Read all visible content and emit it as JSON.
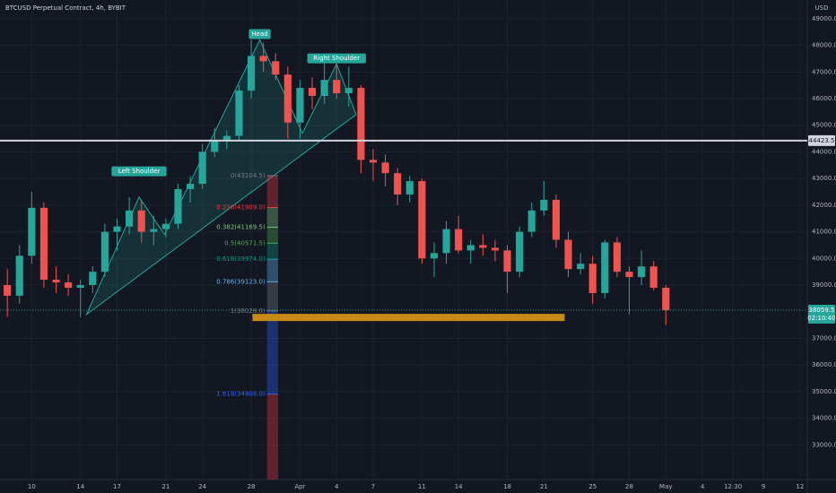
{
  "chart_data": {
    "type": "candlestick",
    "title": "BTCUSD Perpetual Contract, 4h, BYBIT",
    "currency": "USD",
    "up_color": "#26a69a",
    "down_color": "#ef5350",
    "background": "#131722",
    "grid": true,
    "xlim": [
      -2.6,
      63.6
    ],
    "xticks": [
      {
        "value": 0,
        "label": "10"
      },
      {
        "value": 4,
        "label": "14"
      },
      {
        "value": 7,
        "label": "17"
      },
      {
        "value": 11,
        "label": "21"
      },
      {
        "value": 14,
        "label": "24"
      },
      {
        "value": 18,
        "label": "28"
      },
      {
        "value": 22,
        "label": "Apr"
      },
      {
        "value": 25,
        "label": "4"
      },
      {
        "value": 28,
        "label": "7"
      },
      {
        "value": 32,
        "label": "11"
      },
      {
        "value": 35,
        "label": "14"
      },
      {
        "value": 39,
        "label": "18"
      },
      {
        "value": 42,
        "label": "21"
      },
      {
        "value": 46,
        "label": "25"
      },
      {
        "value": 49,
        "label": "28"
      },
      {
        "value": 52,
        "label": "May"
      },
      {
        "value": 55,
        "label": "4"
      },
      {
        "value": 57.5,
        "label": "12:30"
      },
      {
        "value": 60,
        "label": "9"
      },
      {
        "value": 63,
        "label": "12"
      }
    ],
    "ylim": [
      31700,
      49700
    ],
    "yticks": [
      {
        "value": 49000,
        "label": "49000.0"
      },
      {
        "value": 48000,
        "label": "48000.0"
      },
      {
        "value": 47000,
        "label": "47000.0"
      },
      {
        "value": 46000,
        "label": "46000.0"
      },
      {
        "value": 45000,
        "label": "45000.0"
      },
      {
        "value": 44000,
        "label": "44000.0"
      },
      {
        "value": 43000,
        "label": "43000.0"
      },
      {
        "value": 42000,
        "label": "42000.0"
      },
      {
        "value": 41000,
        "label": "41000.0"
      },
      {
        "value": 40000,
        "label": "40000.0"
      },
      {
        "value": 39000,
        "label": "39000.0"
      },
      {
        "value": 37000,
        "label": "37000.0"
      },
      {
        "value": 36000,
        "label": "36000.0"
      },
      {
        "value": 35000,
        "label": "35000.0"
      },
      {
        "value": 34000,
        "label": "34000.0"
      },
      {
        "value": 33000,
        "label": "33000.0"
      }
    ],
    "x": [
      -2,
      -1,
      0,
      1,
      2,
      3,
      4,
      5,
      6,
      7,
      8,
      9,
      10,
      11,
      12,
      13,
      14,
      15,
      16,
      17,
      18,
      19,
      20,
      21,
      22,
      23,
      24,
      25,
      26,
      27,
      28,
      29,
      30,
      31,
      32,
      33,
      34,
      35,
      36,
      37,
      38,
      39,
      40,
      41,
      42,
      43,
      44,
      45,
      46,
      47,
      48,
      49,
      50,
      51,
      52
    ],
    "open": [
      39000,
      38600,
      40100,
      41900,
      39200,
      39100,
      38900,
      39000,
      39500,
      41000,
      41200,
      41800,
      41000,
      41100,
      41300,
      42600,
      42800,
      44000,
      44400,
      44600,
      46300,
      47600,
      47400,
      46900,
      45100,
      46400,
      46100,
      46700,
      46200,
      46400,
      43700,
      43600,
      43200,
      42400,
      42900,
      40000,
      40200,
      41100,
      40300,
      40500,
      40400,
      40300,
      39500,
      41000,
      41800,
      42200,
      40700,
      39600,
      39800,
      38700,
      40600,
      39500,
      39300,
      39700,
      38900
    ],
    "high": [
      39600,
      40500,
      42500,
      42100,
      39700,
      39400,
      39200,
      39700,
      41300,
      41500,
      42300,
      42200,
      41600,
      41500,
      42800,
      43100,
      44300,
      44900,
      44800,
      46500,
      48200,
      48100,
      47700,
      47200,
      46700,
      46800,
      47400,
      47300,
      47200,
      46500,
      44100,
      43900,
      43400,
      43100,
      43000,
      40600,
      41400,
      41600,
      40700,
      40900,
      40700,
      40500,
      41200,
      42100,
      42900,
      42400,
      41000,
      40200,
      40100,
      40700,
      40800,
      39700,
      40300,
      39900,
      39000
    ],
    "low": [
      37800,
      38300,
      39800,
      38900,
      38700,
      38600,
      37800,
      38700,
      39300,
      40300,
      40900,
      40600,
      40500,
      40800,
      41100,
      42100,
      42600,
      43800,
      44100,
      44400,
      46000,
      47000,
      46700,
      44500,
      44500,
      45600,
      45800,
      46000,
      45700,
      43200,
      42900,
      42700,
      42000,
      42100,
      39800,
      39300,
      39800,
      40200,
      39800,
      40100,
      39900,
      38700,
      39300,
      40800,
      41600,
      40400,
      39300,
      39400,
      38300,
      38500,
      39300,
      37900,
      39000,
      38800,
      37500
    ],
    "close": [
      38600,
      40100,
      41900,
      39200,
      39100,
      38900,
      39000,
      39500,
      41000,
      41200,
      41800,
      41000,
      41100,
      41300,
      42600,
      42800,
      44000,
      44400,
      44600,
      46300,
      47600,
      47400,
      46900,
      45100,
      46400,
      46100,
      46700,
      46200,
      46400,
      43700,
      43600,
      43200,
      42400,
      42900,
      40000,
      40200,
      41100,
      40300,
      40500,
      40400,
      40300,
      39500,
      41000,
      41800,
      42200,
      40700,
      39600,
      39800,
      38700,
      40600,
      39500,
      39300,
      39700,
      38900,
      38059.5
    ],
    "countdown": "02:10:40",
    "hline": {
      "value": 44423.5,
      "color": "#d1d4dc"
    },
    "zone": {
      "x": [
        18.1,
        43.7
      ],
      "y": [
        37650,
        37920
      ],
      "color": "#c88a16"
    },
    "pattern": {
      "color": "#26a69a",
      "x": [
        4.5,
        8.8,
        10.9,
        18.7,
        22.2,
        25.0,
        26.6
      ],
      "y": [
        37900,
        42300,
        40900,
        48200,
        44700,
        47300,
        45400
      ],
      "labels": [
        {
          "text": "Left Shoulder",
          "x": 8.8,
          "y": 43270
        },
        {
          "text": "Head",
          "x": 18.7,
          "y": 48420
        },
        {
          "text": "Right Shoulder",
          "x": 25.0,
          "y": 47510
        }
      ]
    },
    "fib": {
      "x": [
        19.3,
        20.2
      ],
      "extension_color": "#f23645",
      "levels": [
        {
          "label": "0(43104.5)",
          "value": 43104.5,
          "color": "#787b86"
        },
        {
          "label": "0.236(41909.0)",
          "value": 41909.0,
          "color": "#f23645"
        },
        {
          "label": "0.382(41169.5)",
          "value": 41169.5,
          "color": "#81c784"
        },
        {
          "label": "0.5(40571.5)",
          "value": 40571.5,
          "color": "#4caf50"
        },
        {
          "label": "0.618(39974.0)",
          "value": 39974.0,
          "color": "#089981"
        },
        {
          "label": "0.786(39123.0)",
          "value": 39123.0,
          "color": "#64b5f6"
        },
        {
          "label": "1(38028.0)",
          "value": 38028.0,
          "color": "#787b86"
        },
        {
          "label": "1.618(34908.0)",
          "value": 34908.0,
          "color": "#2962ff"
        }
      ]
    }
  }
}
